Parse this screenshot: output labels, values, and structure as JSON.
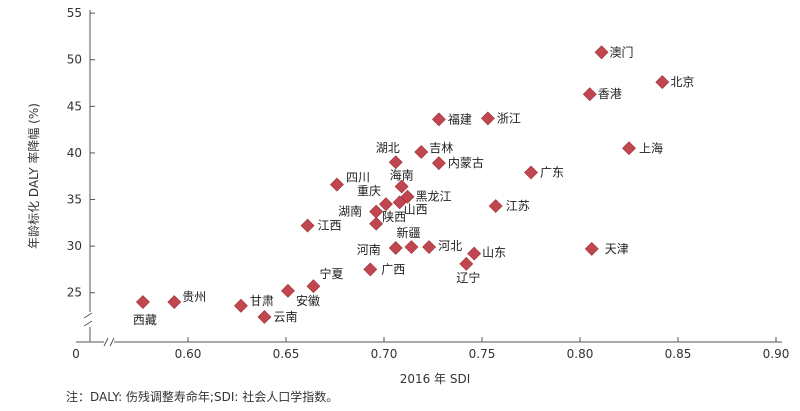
{
  "chart_data": {
    "type": "scatter",
    "xlabel": "2016 年 SDI",
    "ylabel": "年龄标化 DALY 率降幅 (%)",
    "x_ticks": [
      "0",
      "0.60",
      "0.65",
      "0.70",
      "0.75",
      "0.80",
      "0.85",
      "0.90"
    ],
    "y_ticks": [
      "25",
      "30",
      "35",
      "40",
      "45",
      "50",
      "55"
    ],
    "xlim": [
      0.55,
      0.9
    ],
    "ylim": [
      21,
      55
    ],
    "x_axis_break": true,
    "y_axis_break": true,
    "marker": "diamond",
    "marker_color": "#C0474F",
    "points": [
      {
        "label": "澳门",
        "x": 0.811,
        "y": 50.8
      },
      {
        "label": "北京",
        "x": 0.842,
        "y": 47.6
      },
      {
        "label": "香港",
        "x": 0.805,
        "y": 46.3
      },
      {
        "label": "福建",
        "x": 0.728,
        "y": 43.6
      },
      {
        "label": "浙江",
        "x": 0.753,
        "y": 43.7
      },
      {
        "label": "上海",
        "x": 0.825,
        "y": 40.5
      },
      {
        "label": "吉林",
        "x": 0.719,
        "y": 40.1
      },
      {
        "label": "湖北",
        "x": 0.706,
        "y": 39.0
      },
      {
        "label": "内蒙古",
        "x": 0.728,
        "y": 38.9
      },
      {
        "label": "广东",
        "x": 0.775,
        "y": 37.9
      },
      {
        "label": "四川",
        "x": 0.676,
        "y": 36.6
      },
      {
        "label": "海南",
        "x": 0.709,
        "y": 36.4
      },
      {
        "label": "重庆",
        "x": 0.701,
        "y": 34.5
      },
      {
        "label": "黑龙江",
        "x": 0.712,
        "y": 35.3
      },
      {
        "label": "山西",
        "x": 0.708,
        "y": 34.7
      },
      {
        "label": "湖南",
        "x": 0.696,
        "y": 33.7
      },
      {
        "label": "江苏",
        "x": 0.757,
        "y": 34.3
      },
      {
        "label": "江西",
        "x": 0.661,
        "y": 32.2
      },
      {
        "label": "陕西",
        "x": 0.696,
        "y": 32.4
      },
      {
        "label": "新疆",
        "x": 0.714,
        "y": 29.9
      },
      {
        "label": "河南",
        "x": 0.706,
        "y": 29.8
      },
      {
        "label": "河北",
        "x": 0.723,
        "y": 29.9
      },
      {
        "label": "山东",
        "x": 0.746,
        "y": 29.2
      },
      {
        "label": "天津",
        "x": 0.806,
        "y": 29.7
      },
      {
        "label": "辽宁",
        "x": 0.742,
        "y": 28.1
      },
      {
        "label": "广西",
        "x": 0.693,
        "y": 27.5
      },
      {
        "label": "宁夏",
        "x": 0.664,
        "y": 25.7
      },
      {
        "label": "安徽",
        "x": 0.651,
        "y": 25.2
      },
      {
        "label": "甘肃",
        "x": 0.627,
        "y": 23.6
      },
      {
        "label": "云南",
        "x": 0.639,
        "y": 22.4
      },
      {
        "label": "西藏",
        "x": 0.577,
        "y": 24.0
      },
      {
        "label": "贵州",
        "x": 0.593,
        "y": 24.0
      }
    ]
  },
  "footnote": "注：DALY: 伤残调整寿命年;SDI: 社会人口学指数。"
}
